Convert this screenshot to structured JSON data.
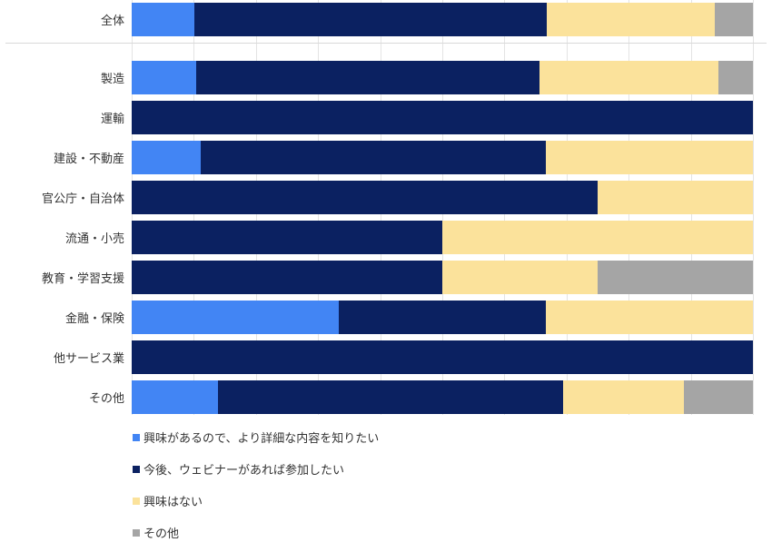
{
  "chart_data": {
    "type": "bar",
    "orientation": "horizontal",
    "stacked": true,
    "unit": "percent",
    "xlim": [
      0,
      100
    ],
    "gridline_step": 10,
    "grid": true,
    "legend_position": "bottom-left",
    "categories": [
      "全体",
      "製造",
      "運輸",
      "建設・不動産",
      "官公庁・自治体",
      "流通・小売",
      "教育・学習支援",
      "金融・保険",
      "他サービス業",
      "その他"
    ],
    "overall_row_separated": true,
    "series": [
      {
        "name": "興味があるので、より詳細な内容を知りたい",
        "color": "#4285F4",
        "values": [
          10.1,
          10.4,
          0,
          11.1,
          0,
          0,
          0,
          33.3,
          0,
          13.9
        ]
      },
      {
        "name": "今後、ウェビナーがあれば参加したい",
        "color": "#0B2161",
        "values": [
          56.7,
          55.3,
          100,
          55.6,
          75,
          50,
          50,
          33.4,
          100,
          55.6
        ]
      },
      {
        "name": "興味はない",
        "color": "#FBE29B",
        "values": [
          27.1,
          28.7,
          0,
          33.3,
          25,
          50,
          25,
          33.3,
          0,
          19.4
        ]
      },
      {
        "name": "その他",
        "color": "#A5A5A5",
        "values": [
          6.1,
          5.6,
          0,
          0,
          0,
          0,
          25,
          0,
          0,
          11.1
        ]
      }
    ]
  }
}
